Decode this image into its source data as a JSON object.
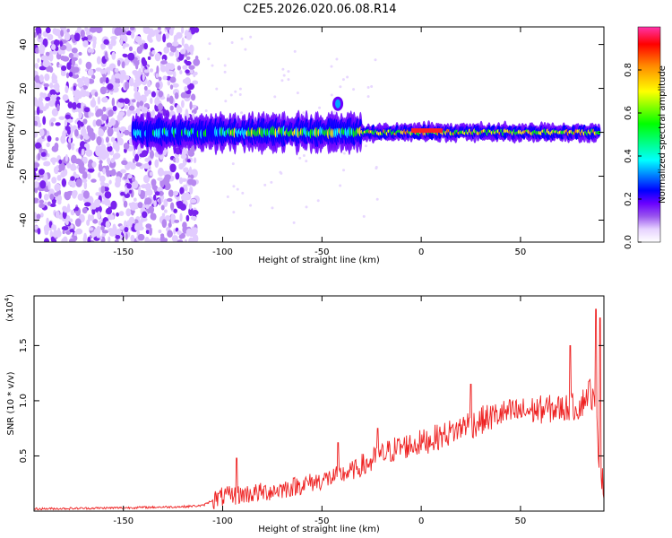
{
  "title": "C2E5.2026.020.06.08.R14",
  "colors": {
    "snr_line": "#ee2222",
    "colormap": [
      "#ffffff",
      "#e6d2ff",
      "#9955ee",
      "#6a00ff",
      "#0000ff",
      "#00ffff",
      "#00ff00",
      "#ffff00",
      "#ff8800",
      "#ff0000",
      "#ff33aa"
    ]
  },
  "chart_data": [
    {
      "type": "heatmap",
      "title": "C2E5.2026.020.06.08.R14",
      "xlabel": "Height of straight line (km)",
      "ylabel": "Frequency (Hz)",
      "xlim": [
        -195,
        92
      ],
      "ylim": [
        -50,
        48
      ],
      "x_ticks": [
        -150,
        -100,
        -50,
        0,
        50
      ],
      "y_ticks": [
        40,
        20,
        0,
        -20,
        -40
      ],
      "x_tick_labels": [
        "-150",
        "-100",
        "-50",
        "0",
        "50"
      ],
      "y_tick_labels": [
        "40",
        "20",
        "0",
        "-20",
        "-40"
      ],
      "colorbar": {
        "label": "Normalized spectral amplitude",
        "range": [
          0,
          1
        ],
        "ticks": [
          0.0,
          0.2,
          0.4,
          0.6,
          0.8
        ],
        "tick_labels": [
          "0.0",
          "0.2",
          "0.4",
          "0.6",
          "0.8"
        ]
      },
      "features": {
        "noise_region_x": [
          -195,
          -113
        ],
        "ridge_x": [
          -145,
          90
        ],
        "ridge_center_hz": 0,
        "peak_x": [
          -5,
          10
        ],
        "secondary_blob_x": -42,
        "secondary_blob_hz": 13
      }
    },
    {
      "type": "line",
      "xlabel": "Height of straight line (km)",
      "ylabel": "SNR (10 * v/v)",
      "y_scale_label": "(x10",
      "y_scale_exponent": "4",
      "xlim": [
        -195,
        92
      ],
      "ylim": [
        0,
        1.95
      ],
      "x_ticks": [
        -150,
        -100,
        -50,
        0,
        50
      ],
      "y_ticks": [
        1.5,
        1.0,
        0.5
      ],
      "x_tick_labels": [
        "-150",
        "-100",
        "-50",
        "0",
        "50"
      ],
      "y_tick_labels": [
        "1.5",
        "1.0",
        "0.5"
      ],
      "series": [
        {
          "x": [
            -195,
            -150,
            -120,
            -110,
            -105,
            -100,
            -90,
            -80,
            -70,
            -60,
            -50,
            -40,
            -30,
            -25,
            -20,
            -15,
            -10,
            0,
            10,
            20,
            22,
            25,
            30,
            40,
            50,
            60,
            70,
            80,
            85,
            88,
            90,
            92
          ],
          "values": [
            0.02,
            0.03,
            0.04,
            0.05,
            0.1,
            0.13,
            0.15,
            0.17,
            0.2,
            0.24,
            0.28,
            0.33,
            0.4,
            0.45,
            0.5,
            0.55,
            0.58,
            0.62,
            0.68,
            0.75,
            0.8,
            0.78,
            0.82,
            0.88,
            0.9,
            0.92,
            0.93,
            0.95,
            1.1,
            0.9,
            0.4,
            0.2
          ],
          "spikes": [
            [
              -22,
              0.75
            ],
            [
              25,
              1.15
            ],
            [
              75,
              1.5
            ],
            [
              88,
              1.83
            ],
            [
              90,
              1.75
            ],
            [
              -93,
              0.48
            ],
            [
              -42,
              0.62
            ]
          ]
        }
      ]
    }
  ]
}
